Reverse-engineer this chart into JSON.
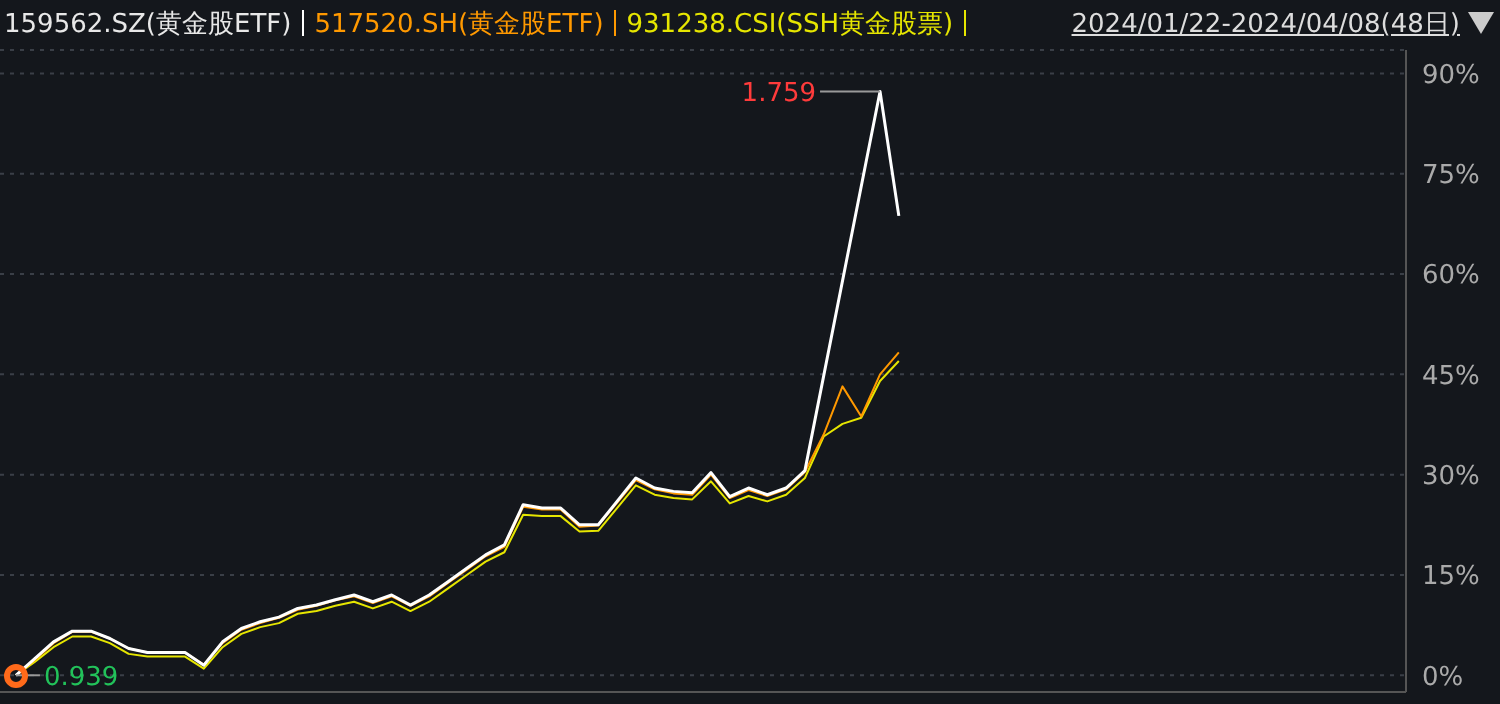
{
  "chart_data": {
    "type": "line",
    "subtitle": "2024/01/22-2024/04/08(48日)",
    "categories": [
      null,
      null,
      null,
      null,
      null,
      null,
      null,
      null,
      null,
      null,
      null,
      null,
      null,
      null,
      null,
      null,
      null,
      null,
      null,
      null,
      null,
      null,
      null,
      null,
      null,
      null,
      null,
      null,
      null,
      null,
      null,
      null,
      null,
      null,
      null,
      null,
      null,
      null,
      null,
      null,
      null,
      null,
      null,
      null,
      null,
      null,
      null,
      null,
      null,
      null,
      null,
      null,
      null,
      null,
      null,
      null,
      null,
      null,
      null,
      null,
      null,
      null,
      null,
      null,
      null,
      null,
      null,
      null,
      null,
      null,
      null,
      null,
      null,
      null,
      null
    ],
    "series": [
      {
        "name": "159562.SZ(黄金股ETF)",
        "color": "#ffffff",
        "values": [
          0,
          2.5,
          5,
          6.6,
          6.6,
          5.5,
          4,
          3.4,
          3.4,
          3.4,
          1.5,
          5,
          7,
          8,
          8.7,
          10,
          10.5,
          11.3,
          12,
          11,
          12,
          10.5,
          12,
          14,
          16,
          18,
          19.5,
          25.5,
          25,
          25,
          22.5,
          22.5,
          26,
          29.5,
          28,
          27.5,
          27.3,
          30.3,
          26.7,
          28,
          27,
          28,
          30.6,
          null,
          null,
          null,
          87.3,
          68.7,
          null,
          null,
          null,
          null,
          null,
          null,
          null,
          null,
          null,
          null,
          null,
          null,
          null,
          null,
          null,
          null,
          null,
          null,
          null,
          null,
          null,
          null,
          null,
          null,
          null,
          null,
          null
        ]
      },
      {
        "name": "517520.SH(黄金股ETF)",
        "color": "#ff9900",
        "values": [
          0,
          2.3,
          4.8,
          6.5,
          6.5,
          5.5,
          4,
          3.4,
          3.4,
          3.4,
          1.6,
          4.8,
          6.8,
          7.8,
          8.6,
          9.8,
          10.4,
          11.2,
          11.8,
          10.8,
          11.8,
          10.4,
          11.8,
          13.8,
          15.8,
          17.8,
          19.2,
          25.2,
          24.8,
          24.8,
          22.2,
          22.4,
          25.8,
          29.2,
          27.8,
          27.2,
          27,
          30,
          26.5,
          27.7,
          26.8,
          27.8,
          30.4,
          36,
          43.2,
          38.7,
          45,
          48.3,
          null,
          null,
          null,
          null,
          null,
          null,
          null,
          null,
          null,
          null,
          null,
          null,
          null,
          null,
          null,
          null,
          null,
          null,
          null,
          null,
          null,
          null,
          null,
          null,
          null,
          null,
          null
        ]
      },
      {
        "name": "931238.CSI(SSH黄金股票)",
        "color": "#e6e600",
        "values": [
          0,
          2,
          4.2,
          5.8,
          5.8,
          4.8,
          3.2,
          2.8,
          2.8,
          2.8,
          1,
          4.2,
          6.2,
          7.2,
          7.8,
          9.2,
          9.6,
          10.4,
          11,
          10,
          11,
          9.6,
          11,
          13,
          15,
          17,
          18.4,
          24,
          23.8,
          23.8,
          21.5,
          21.6,
          25,
          28.4,
          27,
          26.5,
          26.3,
          29,
          25.7,
          26.8,
          26,
          27,
          29.5,
          35.7,
          37.6,
          38.5,
          44,
          47,
          null,
          null,
          null,
          null,
          null,
          null,
          null,
          null,
          null,
          null,
          null,
          null,
          null,
          null,
          null,
          null,
          null,
          null,
          null,
          null,
          null,
          null,
          null,
          null,
          null,
          null,
          null
        ]
      }
    ],
    "ylim": [
      -2.5,
      93.5
    ],
    "yticks": [
      {
        "value": 0,
        "label": "0%"
      },
      {
        "value": 15,
        "label": "15%"
      },
      {
        "value": 30,
        "label": "30%"
      },
      {
        "value": 45,
        "label": "45%"
      },
      {
        "value": 60,
        "label": "60%"
      },
      {
        "value": 75,
        "label": "75%"
      },
      {
        "value": 90,
        "label": "90%"
      }
    ],
    "tick_labels": "y",
    "grid": "y",
    "legend": "top left",
    "line_style": "solid",
    "marker": "none",
    "annotations": [
      "1.759",
      "0.939"
    ]
  }
}
